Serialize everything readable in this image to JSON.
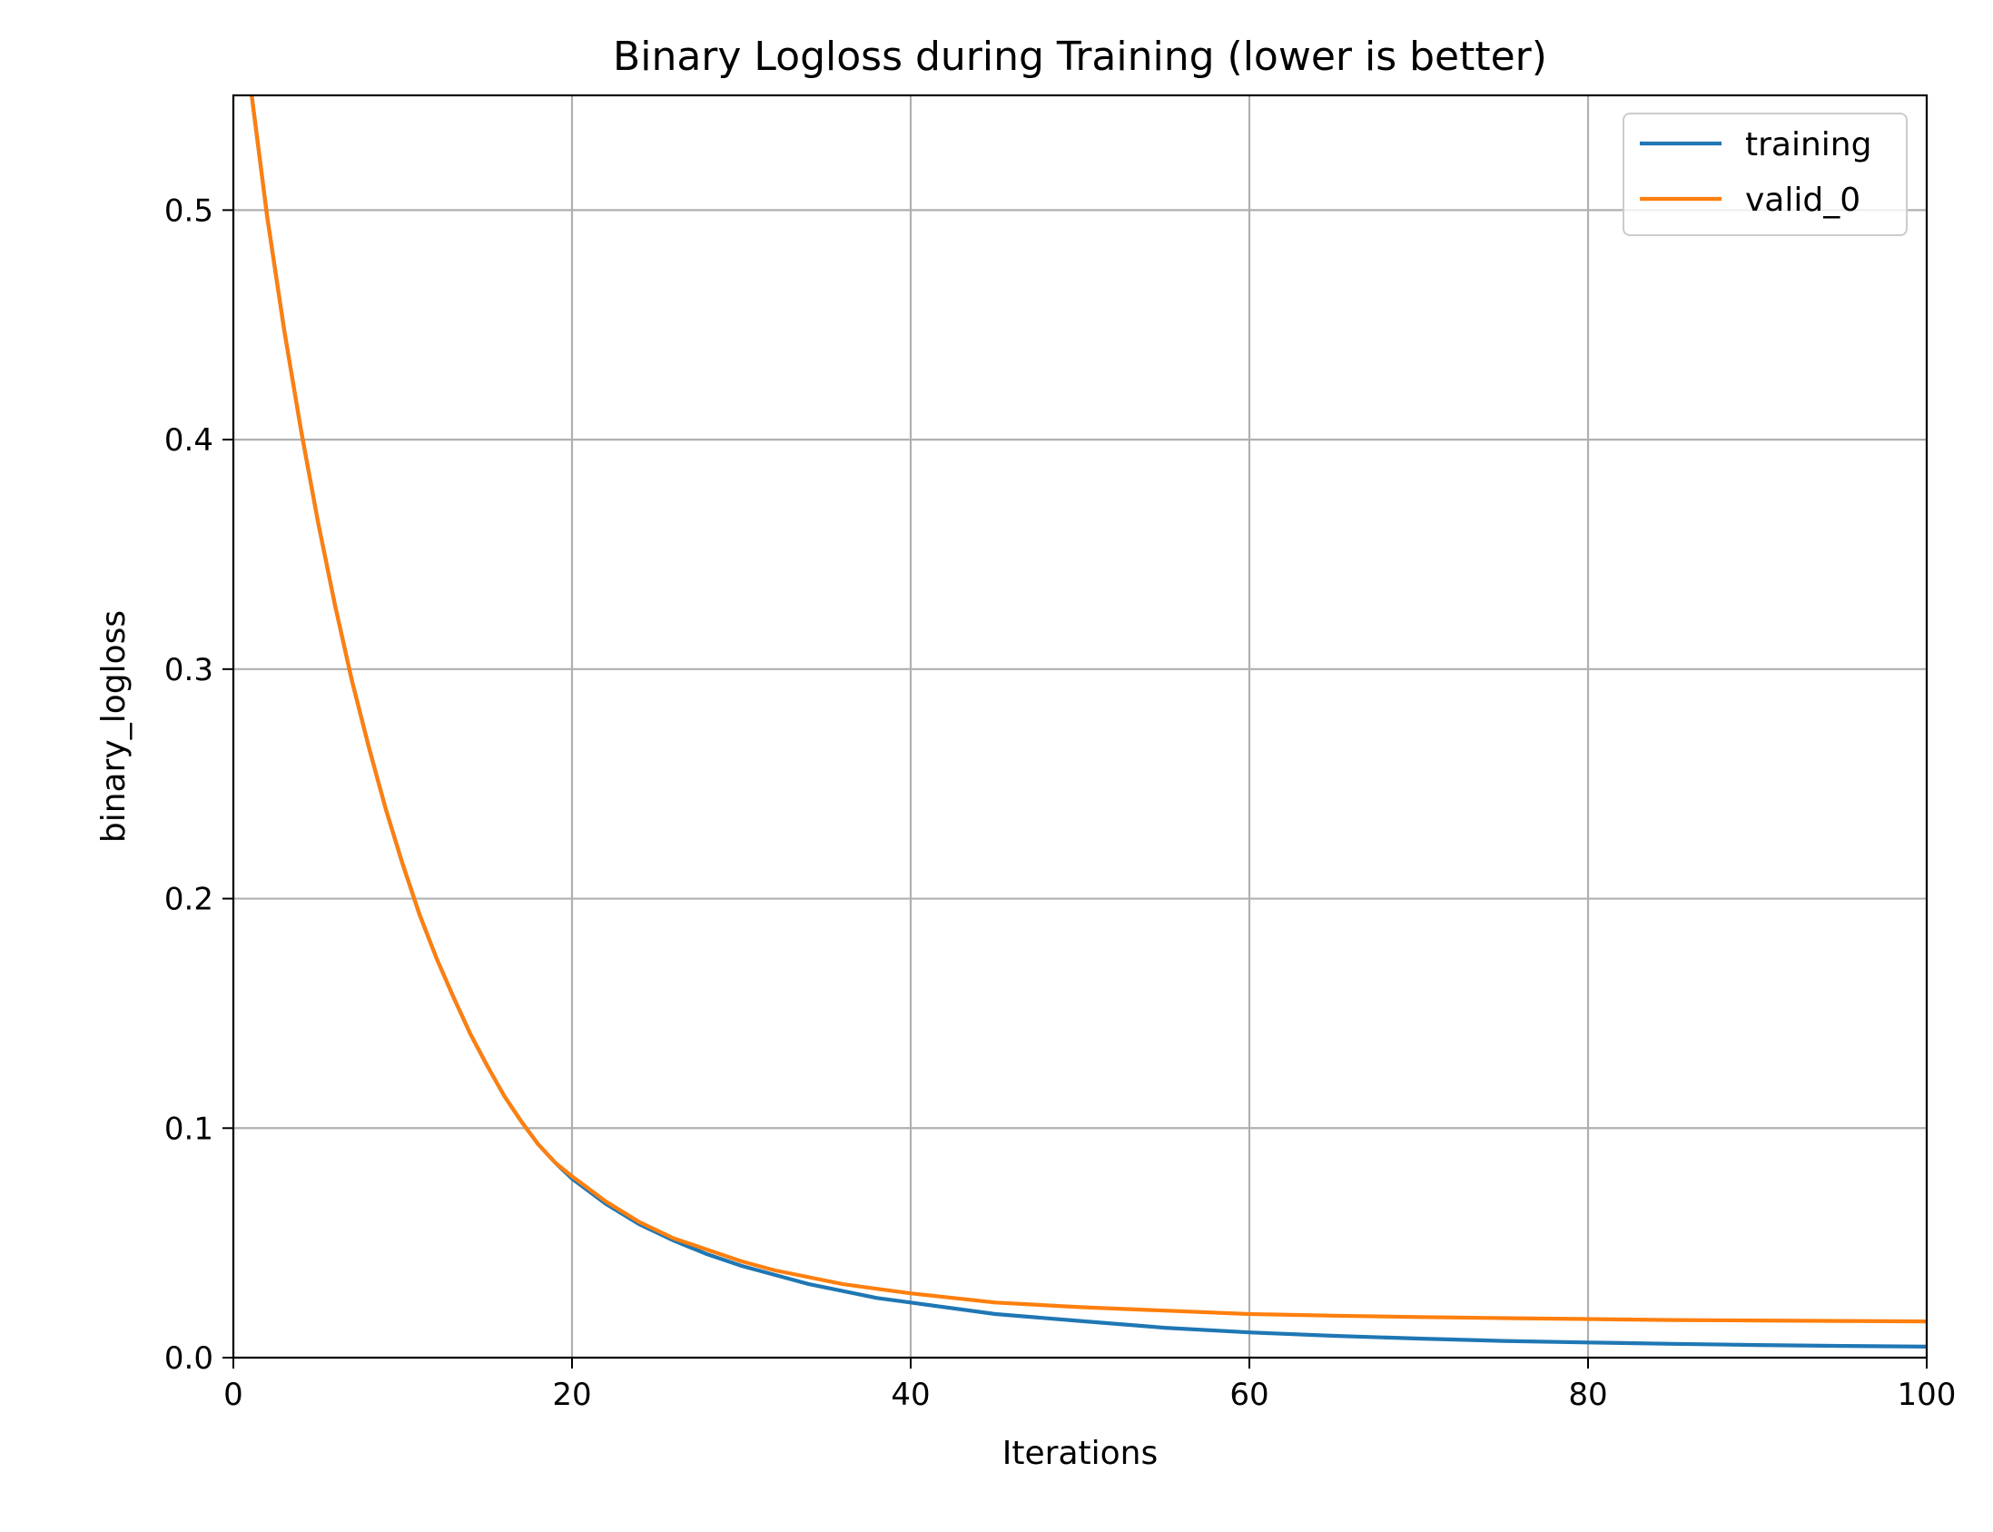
{
  "chart_data": {
    "type": "line",
    "title": "Binary Logloss during Training (lower is better)",
    "xlabel": "Iterations",
    "ylabel": "binary_logloss",
    "xlim": [
      0,
      100
    ],
    "ylim": [
      0,
      0.55
    ],
    "xticks": [
      0,
      20,
      40,
      60,
      80,
      100
    ],
    "xtick_labels": [
      "0",
      "20",
      "40",
      "60",
      "80",
      "100"
    ],
    "yticks": [
      0,
      0.1,
      0.2,
      0.3,
      0.4,
      0.5
    ],
    "ytick_labels": [
      "0.0",
      "0.1",
      "0.2",
      "0.3",
      "0.4",
      "0.5"
    ],
    "grid": true,
    "legend_position": "top-right",
    "x": [
      1,
      2,
      3,
      4,
      5,
      6,
      7,
      8,
      9,
      10,
      11,
      12,
      13,
      14,
      15,
      16,
      17,
      18,
      19,
      20,
      22,
      24,
      26,
      28,
      30,
      32,
      34,
      36,
      38,
      40,
      45,
      50,
      55,
      60,
      65,
      70,
      75,
      80,
      85,
      90,
      95,
      100
    ],
    "series": [
      {
        "name": "training",
        "color": "#1f77b4",
        "values": [
          0.555,
          0.497,
          0.448,
          0.404,
          0.364,
          0.328,
          0.295,
          0.266,
          0.239,
          0.215,
          0.193,
          0.174,
          0.157,
          0.141,
          0.127,
          0.114,
          0.103,
          0.093,
          0.085,
          0.078,
          0.067,
          0.058,
          0.051,
          0.045,
          0.04,
          0.036,
          0.032,
          0.029,
          0.026,
          0.024,
          0.019,
          0.016,
          0.013,
          0.011,
          0.0095,
          0.0083,
          0.0073,
          0.0066,
          0.006,
          0.0055,
          0.0051,
          0.0048
        ]
      },
      {
        "name": "valid_0",
        "color": "#ff7f0e",
        "values": [
          0.555,
          0.497,
          0.448,
          0.404,
          0.364,
          0.328,
          0.295,
          0.266,
          0.239,
          0.215,
          0.193,
          0.174,
          0.157,
          0.141,
          0.127,
          0.114,
          0.103,
          0.093,
          0.085,
          0.079,
          0.068,
          0.059,
          0.052,
          0.047,
          0.042,
          0.038,
          0.035,
          0.032,
          0.03,
          0.028,
          0.024,
          0.022,
          0.0205,
          0.019,
          0.0183,
          0.0177,
          0.0172,
          0.0168,
          0.0164,
          0.0162,
          0.016,
          0.0158
        ]
      }
    ]
  }
}
